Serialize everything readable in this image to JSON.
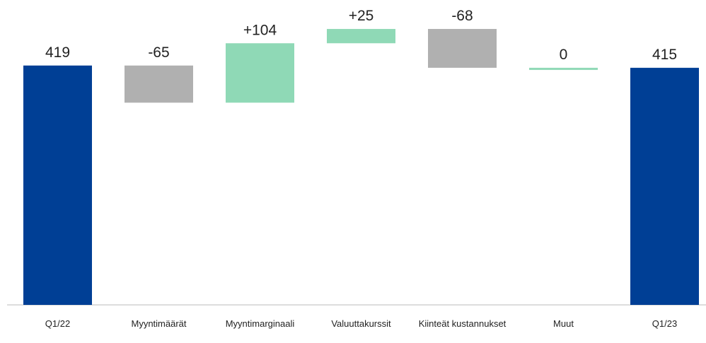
{
  "chart_data": {
    "type": "waterfall",
    "categories": [
      "Q1/22",
      "Myyntimäärät",
      "Myyntimarginaali",
      "Valuuttakurssit",
      "Kiinteät kustannukset",
      "Muut",
      "Q1/23"
    ],
    "values": [
      419,
      -65,
      104,
      25,
      -68,
      0,
      415
    ],
    "value_labels": [
      "419",
      "-65",
      "+104",
      "+25",
      "-68",
      "0",
      "415"
    ],
    "measure": [
      "total",
      "relative",
      "relative",
      "relative",
      "relative",
      "relative",
      "total"
    ],
    "colors": {
      "total": "#003f95",
      "increase": "#8fd9b6",
      "decrease": "#b0b0b0"
    },
    "ylim": [
      0,
      530
    ]
  }
}
